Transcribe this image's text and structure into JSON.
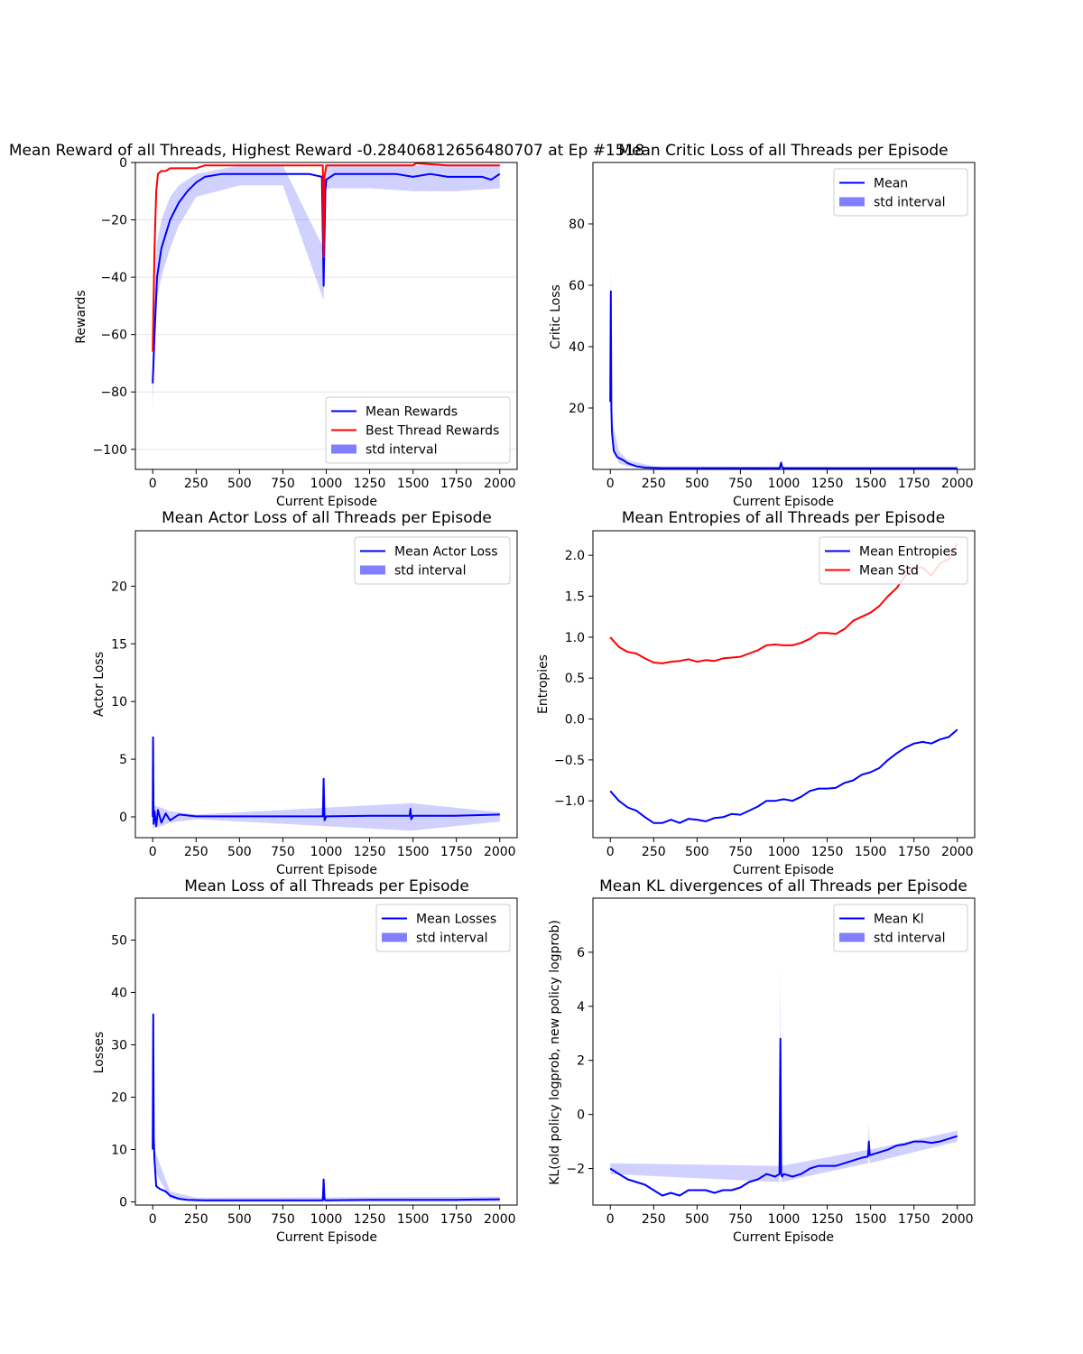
{
  "chart_data": [
    {
      "type": "line",
      "title": "Mean Reward of all Threads, Highest Reward -0.28406812656480707 at Ep #1518",
      "xlabel": "Current Episode",
      "ylabel": "Rewards",
      "xlim": [
        -100,
        2100
      ],
      "ylim": [
        -107,
        0
      ],
      "xticks": [
        0,
        250,
        500,
        750,
        1000,
        1250,
        1500,
        1750,
        2000
      ],
      "yticks": [
        0,
        -20,
        -40,
        -60,
        -80,
        -100
      ],
      "grid": true,
      "legend": {
        "position": "lower-right",
        "entries": [
          "Mean Rewards",
          "Best Thread Rewards",
          "std interval"
        ]
      },
      "series": [
        {
          "name": "Mean Rewards",
          "color": "#0000ff",
          "kind": "line",
          "x": [
            0,
            10,
            25,
            50,
            75,
            100,
            150,
            200,
            250,
            300,
            400,
            500,
            600,
            700,
            800,
            900,
            975,
            985,
            995,
            1000,
            1050,
            1100,
            1200,
            1300,
            1400,
            1500,
            1600,
            1700,
            1800,
            1900,
            1950,
            2000
          ],
          "values": [
            -77,
            -60,
            -40,
            -30,
            -25,
            -20,
            -14,
            -10,
            -7,
            -5,
            -4,
            -4,
            -4,
            -4,
            -4,
            -4,
            -5,
            -43,
            -10,
            -6,
            -4,
            -4,
            -4,
            -4,
            -4,
            -5,
            -4,
            -5,
            -5,
            -5,
            -6,
            -4
          ]
        },
        {
          "name": "Best Thread Rewards",
          "color": "#ff0000",
          "kind": "line",
          "x": [
            0,
            10,
            20,
            30,
            50,
            75,
            100,
            150,
            200,
            250,
            300,
            400,
            500,
            600,
            800,
            980,
            985,
            990,
            1000,
            1100,
            1300,
            1500,
            1518,
            1700,
            1900,
            2000
          ],
          "values": [
            -66,
            -30,
            -10,
            -4,
            -3,
            -3,
            -2,
            -2,
            -2,
            -2,
            -1,
            -1,
            -1,
            -1,
            -1,
            -1,
            -33,
            -5,
            -1,
            -1,
            -1,
            -1,
            -0.28,
            -1,
            -1,
            -1
          ]
        },
        {
          "name": "std interval",
          "color": "#0000ff",
          "kind": "band",
          "x": [
            0,
            25,
            50,
            100,
            150,
            250,
            500,
            750,
            985,
            1000,
            1250,
            1500,
            1750,
            2000
          ],
          "upper": [
            -62,
            -28,
            -20,
            -12,
            -8,
            -4,
            -1,
            -1,
            -30,
            -1,
            -1,
            -1,
            -1,
            -1
          ],
          "lower": [
            -85,
            -48,
            -40,
            -30,
            -22,
            -12,
            -8,
            -8,
            -48,
            -9,
            -9,
            -10,
            -10,
            -9
          ]
        }
      ]
    },
    {
      "type": "line",
      "title": "Mean Critic Loss of all Threads per Episode",
      "xlabel": "Current Episode",
      "ylabel": "Critic Loss",
      "xlim": [
        -100,
        2100
      ],
      "ylim": [
        0,
        100
      ],
      "xticks": [
        0,
        250,
        500,
        750,
        1000,
        1250,
        1500,
        1750,
        2000
      ],
      "yticks": [
        20,
        40,
        60,
        80
      ],
      "grid": false,
      "legend": {
        "position": "top-right",
        "entries": [
          "Mean",
          "std interval"
        ]
      },
      "series": [
        {
          "name": "Mean",
          "color": "#0000ff",
          "kind": "line",
          "x": [
            0,
            3,
            6,
            10,
            20,
            40,
            75,
            100,
            150,
            200,
            300,
            500,
            750,
            975,
            985,
            990,
            1000,
            1250,
            1500,
            1750,
            2000
          ],
          "values": [
            22,
            58,
            20,
            12,
            6,
            4,
            3,
            2,
            1,
            0.6,
            0.4,
            0.4,
            0.4,
            0.4,
            2.2,
            0.6,
            0.4,
            0.4,
            0.4,
            0.4,
            0.4
          ]
        },
        {
          "name": "std interval",
          "color": "#0000ff",
          "kind": "band",
          "x": [
            0,
            3,
            10,
            50,
            100,
            250,
            2000
          ],
          "upper": [
            30,
            66,
            16,
            6,
            3,
            1,
            0.6
          ],
          "lower": [
            14,
            50,
            8,
            2,
            1,
            0.2,
            0.2
          ]
        }
      ]
    },
    {
      "type": "line",
      "title": "Mean Actor Loss of all Threads per Episode",
      "xlabel": "Current Episode",
      "ylabel": "Actor Loss",
      "xlim": [
        -100,
        2100
      ],
      "ylim": [
        -1.8,
        24.8
      ],
      "xticks": [
        0,
        250,
        500,
        750,
        1000,
        1250,
        1500,
        1750,
        2000
      ],
      "yticks": [
        0,
        5,
        10,
        15,
        20
      ],
      "grid": false,
      "legend": {
        "position": "top-right",
        "entries": [
          "Mean Actor Loss",
          "std interval"
        ]
      },
      "series": [
        {
          "name": "Mean Actor Loss",
          "color": "#0000ff",
          "kind": "line",
          "x": [
            0,
            2,
            5,
            10,
            20,
            30,
            50,
            75,
            100,
            150,
            250,
            500,
            750,
            980,
            985,
            990,
            1000,
            1250,
            1480,
            1485,
            1490,
            1500,
            1750,
            2000
          ],
          "values": [
            0,
            6.9,
            -0.6,
            0.5,
            -0.8,
            0.6,
            -0.5,
            0.3,
            -0.3,
            0.2,
            0.05,
            0.05,
            0.05,
            0.05,
            3.3,
            -0.3,
            0.05,
            0.1,
            0.1,
            0.7,
            -0.2,
            0.1,
            0.1,
            0.2
          ]
        },
        {
          "name": "std interval",
          "color": "#0000ff",
          "kind": "band",
          "x": [
            0,
            50,
            100,
            250,
            1490,
            2000
          ],
          "upper": [
            1,
            0.8,
            0.5,
            0.2,
            1.2,
            0.4
          ],
          "lower": [
            -1,
            -0.8,
            -0.5,
            -0.2,
            -1.2,
            -0.4
          ]
        }
      ]
    },
    {
      "type": "line",
      "title": "Mean Entropies of all Threads per Episode",
      "xlabel": "Current Episode",
      "ylabel": "Entropies",
      "xlim": [
        -100,
        2100
      ],
      "ylim": [
        -1.45,
        2.3
      ],
      "xticks": [
        0,
        250,
        500,
        750,
        1000,
        1250,
        1500,
        1750,
        2000
      ],
      "yticks": [
        2.0,
        1.5,
        1.0,
        0.5,
        0.0,
        -0.5,
        -1.0
      ],
      "grid": false,
      "legend": {
        "position": "top-right",
        "entries": [
          "Mean Entropies",
          "Mean Std"
        ]
      },
      "series": [
        {
          "name": "Mean Entropies",
          "color": "#0000ff",
          "kind": "line",
          "x": [
            0,
            50,
            100,
            150,
            200,
            250,
            300,
            350,
            400,
            450,
            500,
            550,
            600,
            650,
            700,
            750,
            800,
            850,
            900,
            950,
            1000,
            1050,
            1100,
            1150,
            1200,
            1250,
            1300,
            1350,
            1400,
            1450,
            1500,
            1550,
            1600,
            1650,
            1700,
            1750,
            1800,
            1850,
            1900,
            1950,
            2000
          ],
          "values": [
            -0.88,
            -1.0,
            -1.08,
            -1.12,
            -1.2,
            -1.27,
            -1.27,
            -1.23,
            -1.27,
            -1.22,
            -1.23,
            -1.25,
            -1.21,
            -1.2,
            -1.16,
            -1.17,
            -1.12,
            -1.07,
            -1.0,
            -1.0,
            -0.98,
            -1.0,
            -0.95,
            -0.88,
            -0.85,
            -0.85,
            -0.84,
            -0.78,
            -0.75,
            -0.68,
            -0.65,
            -0.6,
            -0.5,
            -0.42,
            -0.35,
            -0.3,
            -0.28,
            -0.3,
            -0.25,
            -0.22,
            -0.13
          ]
        },
        {
          "name": "Mean Std",
          "color": "#ff0000",
          "kind": "line",
          "x": [
            0,
            50,
            100,
            150,
            200,
            250,
            300,
            350,
            400,
            450,
            500,
            550,
            600,
            650,
            700,
            750,
            800,
            850,
            900,
            950,
            1000,
            1050,
            1100,
            1150,
            1200,
            1250,
            1300,
            1350,
            1400,
            1450,
            1500,
            1550,
            1600,
            1650,
            1700,
            1750,
            1800,
            1850,
            1900,
            1950,
            2000
          ],
          "values": [
            1.0,
            0.88,
            0.82,
            0.8,
            0.74,
            0.69,
            0.68,
            0.7,
            0.71,
            0.73,
            0.7,
            0.72,
            0.71,
            0.74,
            0.75,
            0.76,
            0.8,
            0.84,
            0.9,
            0.91,
            0.9,
            0.9,
            0.93,
            0.98,
            1.05,
            1.05,
            1.04,
            1.1,
            1.2,
            1.25,
            1.3,
            1.38,
            1.5,
            1.6,
            1.75,
            1.85,
            1.85,
            1.75,
            1.9,
            1.95,
            2.15
          ]
        }
      ]
    },
    {
      "type": "line",
      "title": "Mean Loss of all Threads per Episode",
      "xlabel": "Current Episode",
      "ylabel": "Losses",
      "xlim": [
        -100,
        2100
      ],
      "ylim": [
        -0.6,
        58
      ],
      "xticks": [
        0,
        250,
        500,
        750,
        1000,
        1250,
        1500,
        1750,
        2000
      ],
      "yticks": [
        0,
        10,
        20,
        30,
        40,
        50
      ],
      "grid": false,
      "legend": {
        "position": "top-right",
        "entries": [
          "Mean Losses",
          "std interval"
        ]
      },
      "series": [
        {
          "name": "Mean Losses",
          "color": "#0000ff",
          "kind": "line",
          "x": [
            0,
            3,
            6,
            10,
            20,
            40,
            75,
            100,
            150,
            200,
            300,
            500,
            750,
            980,
            985,
            990,
            1000,
            1250,
            1500,
            1750,
            2000
          ],
          "values": [
            10,
            35.8,
            12,
            8,
            3,
            2.5,
            2,
            1.2,
            0.6,
            0.4,
            0.3,
            0.3,
            0.3,
            0.3,
            4.3,
            0.4,
            0.3,
            0.4,
            0.4,
            0.4,
            0.5
          ]
        },
        {
          "name": "std interval",
          "color": "#0000ff",
          "kind": "band",
          "x": [
            0,
            3,
            10,
            100,
            250,
            2000
          ],
          "upper": [
            14,
            38,
            10,
            2,
            0.8,
            1
          ],
          "lower": [
            6,
            32,
            6,
            0.6,
            0,
            0
          ]
        }
      ]
    },
    {
      "type": "line",
      "title": "Mean KL divergences of all Threads per Episode",
      "xlabel": "Current Episode",
      "ylabel": "KL(old policy logprob, new policy logprob)",
      "xlim": [
        -100,
        2100
      ],
      "ylim": [
        -3.35,
        8.0
      ],
      "xticks": [
        0,
        250,
        500,
        750,
        1000,
        1250,
        1500,
        1750,
        2000
      ],
      "yticks": [
        6,
        4,
        2,
        0,
        -2
      ],
      "grid": false,
      "legend": {
        "position": "top-right",
        "entries": [
          "Mean Kl",
          "std interval"
        ]
      },
      "series": [
        {
          "name": "Mean Kl",
          "color": "#0000ff",
          "kind": "line",
          "x": [
            0,
            50,
            100,
            150,
            200,
            250,
            300,
            350,
            400,
            450,
            500,
            550,
            600,
            650,
            700,
            750,
            800,
            850,
            900,
            950,
            975,
            980,
            985,
            990,
            1000,
            1050,
            1100,
            1150,
            1200,
            1250,
            1300,
            1350,
            1400,
            1450,
            1485,
            1490,
            1495,
            1500,
            1550,
            1600,
            1650,
            1700,
            1750,
            1800,
            1850,
            1900,
            1950,
            2000
          ],
          "values": [
            -2.0,
            -2.2,
            -2.4,
            -2.5,
            -2.6,
            -2.8,
            -3.0,
            -2.9,
            -3.0,
            -2.8,
            -2.8,
            -2.8,
            -2.9,
            -2.8,
            -2.8,
            -2.7,
            -2.5,
            -2.4,
            -2.2,
            -2.3,
            -2.2,
            2.8,
            -2.2,
            -2.3,
            -2.2,
            -2.3,
            -2.2,
            -2.0,
            -1.9,
            -1.9,
            -1.9,
            -1.8,
            -1.7,
            -1.6,
            -1.55,
            -1.0,
            -1.5,
            -1.5,
            -1.4,
            -1.3,
            -1.15,
            -1.1,
            -1.0,
            -1.0,
            -1.05,
            -1.0,
            -0.9,
            -0.8
          ]
        },
        {
          "name": "std interval",
          "color": "#0000ff",
          "kind": "band",
          "x": [
            0,
            975,
            980,
            985,
            1485,
            1490,
            1495,
            2000
          ],
          "upper": [
            -1.8,
            -1.9,
            5.5,
            -1.9,
            -1.3,
            -0.3,
            -1.3,
            -0.6
          ],
          "lower": [
            -2.2,
            -2.5,
            0.2,
            -2.5,
            -1.8,
            -1.5,
            -1.8,
            -1.0
          ]
        }
      ]
    }
  ]
}
